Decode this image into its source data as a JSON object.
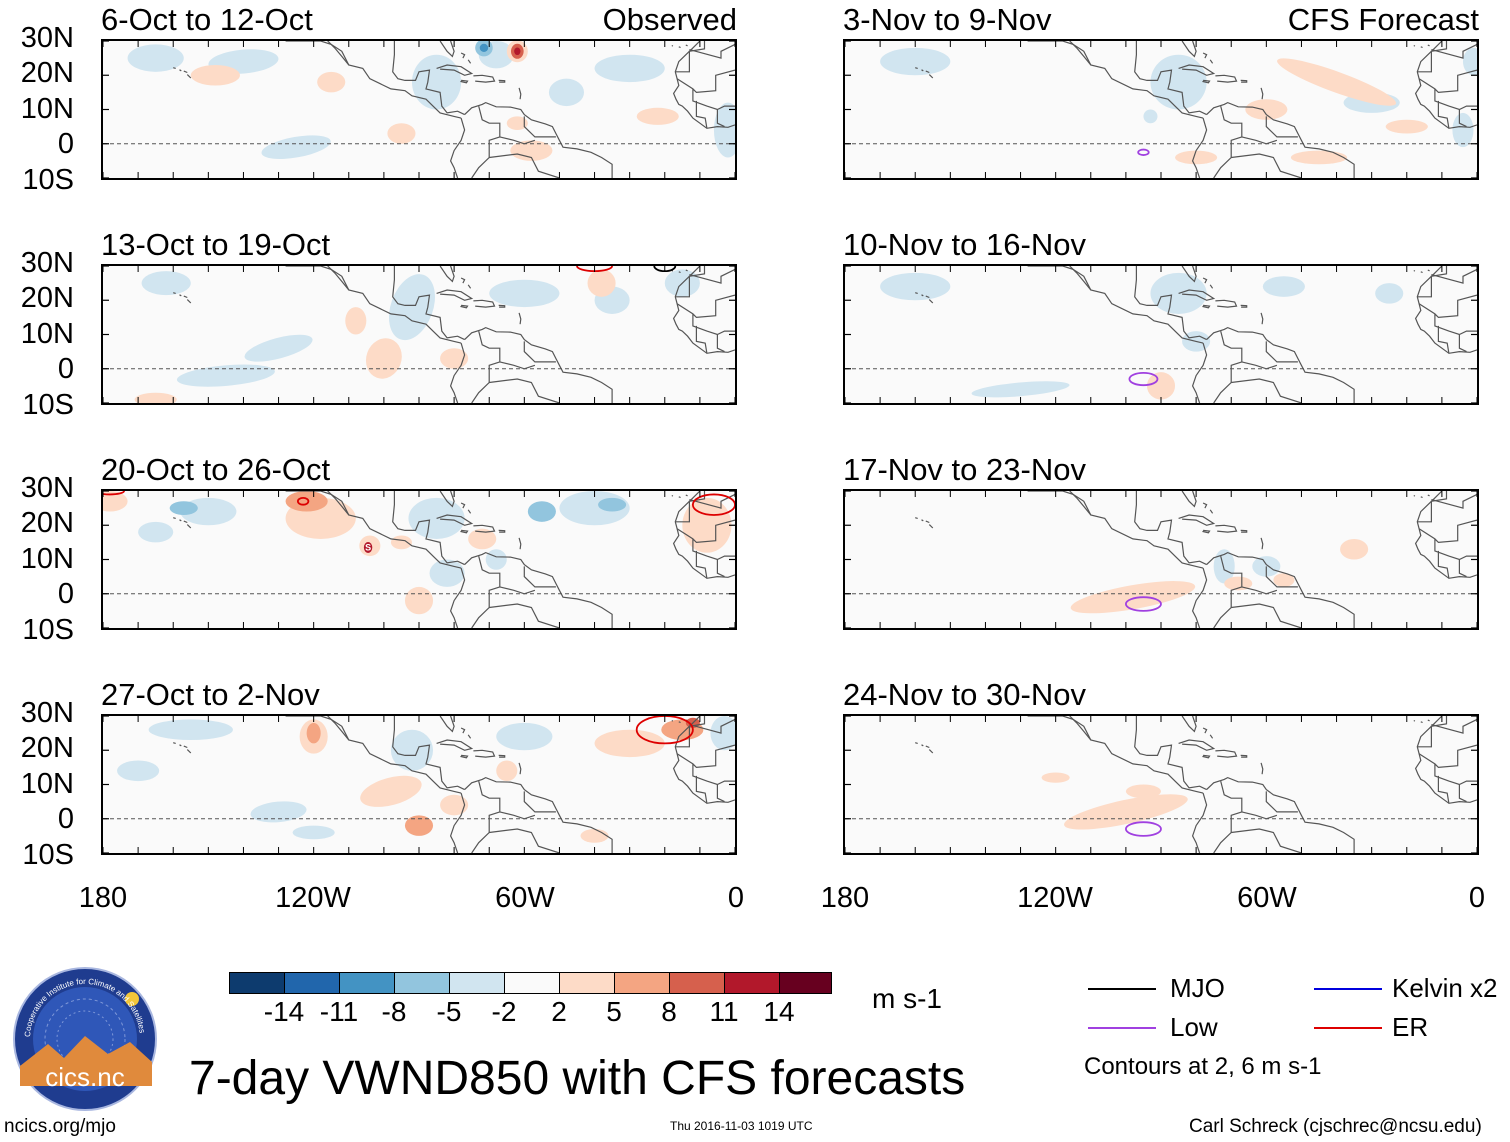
{
  "figure": {
    "title": "7-day VWND850 with CFS forecasts",
    "observed_tag": "Observed",
    "forecast_tag": "CFS Forecast",
    "footer_left": "ncics.org/mjo",
    "timestamp": "Thu 2016-11-03 1019 UTC",
    "author": "Carl Schreck (cjschrec@ncsu.edu)",
    "logo_text": "cics.nc",
    "logo_ring": "Cooperative Institute for Climate and Satellites",
    "storm_symbol": "S"
  },
  "map_axes": {
    "lat_labels": [
      "30N",
      "20N",
      "10N",
      "0",
      "10S"
    ],
    "lon_labels": [
      "180",
      "120W",
      "60W",
      "0"
    ],
    "lon_range_deg": [
      -180,
      0
    ],
    "lat_range_deg": [
      -10,
      30
    ]
  },
  "panels": {
    "observed": [
      {
        "period": "6-Oct to 12-Oct"
      },
      {
        "period": "13-Oct to 19-Oct"
      },
      {
        "period": "20-Oct to 26-Oct"
      },
      {
        "period": "27-Oct to 2-Nov"
      }
    ],
    "forecast": [
      {
        "period": "3-Nov to 9-Nov"
      },
      {
        "period": "10-Nov to 16-Nov"
      },
      {
        "period": "17-Nov to 23-Nov"
      },
      {
        "period": "24-Nov to 30-Nov"
      }
    ]
  },
  "colorbar": {
    "units": "m s-1",
    "tick_labels": [
      "-14",
      "-11",
      "-8",
      "-5",
      "-2",
      "2",
      "5",
      "8",
      "11",
      "14"
    ],
    "colors": [
      "#0d3b6e",
      "#2166ac",
      "#4393c3",
      "#92c5de",
      "#d1e5f0",
      "#fafafa",
      "#fddbc7",
      "#f4a582",
      "#d6604d",
      "#b2182b",
      "#67001f"
    ]
  },
  "legend": {
    "items": [
      {
        "label": "MJO",
        "color": "#000000"
      },
      {
        "label": "Kelvin x2",
        "color": "#0000dd"
      },
      {
        "label": "Low",
        "color": "#a040e0"
      },
      {
        "label": "ER",
        "color": "#dd0000"
      }
    ],
    "contour_note": "Contours at 2, 6 m s-1"
  }
}
